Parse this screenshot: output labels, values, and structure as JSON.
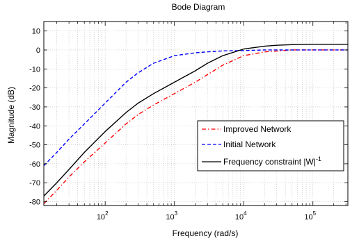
{
  "chart_data": {
    "type": "line",
    "title": "Bode Diagram",
    "xlabel": "Frequency  (rad/s)",
    "ylabel": "Magnitude (dB)",
    "xscale": "log",
    "xlim": [
      13,
      320000
    ],
    "ylim": [
      -82,
      15
    ],
    "yticks": [
      10,
      0,
      -10,
      -20,
      -30,
      -40,
      -50,
      -60,
      -70,
      -80
    ],
    "xticks": [
      {
        "value": 100,
        "base": "10",
        "exp": "2"
      },
      {
        "value": 1000,
        "base": "10",
        "exp": "3"
      },
      {
        "value": 10000,
        "base": "10",
        "exp": "4"
      },
      {
        "value": 100000,
        "base": "10",
        "exp": "5"
      }
    ],
    "grid": true,
    "legend_position": "inside-lower-right",
    "series": [
      {
        "name": "Improved Network",
        "color": "#ff0000",
        "style": "dashdot",
        "x": [
          13,
          20,
          30,
          50,
          100,
          200,
          300,
          500,
          1000,
          2000,
          3000,
          5000,
          10000,
          20000,
          50000,
          100000,
          320000
        ],
        "y": [
          -81,
          -74,
          -67,
          -59,
          -49,
          -39,
          -34,
          -29,
          -23,
          -17,
          -13,
          -8,
          -3,
          -1,
          0,
          0,
          0
        ]
      },
      {
        "name": "Initial Network",
        "color": "#0000ff",
        "style": "dashed",
        "x": [
          13,
          20,
          30,
          50,
          100,
          200,
          300,
          500,
          1000,
          2000,
          3000,
          5000,
          10000,
          20000,
          50000,
          100000,
          320000
        ],
        "y": [
          -61,
          -54,
          -47,
          -39,
          -28,
          -17,
          -12,
          -7,
          -3,
          -1.5,
          -1,
          -0.5,
          -0.3,
          0,
          0,
          0,
          0
        ]
      },
      {
        "name": "Frequency constraint |W|",
        "name_sup": "-1",
        "color": "#000000",
        "style": "solid",
        "x": [
          13,
          20,
          30,
          50,
          100,
          200,
          300,
          500,
          1000,
          2000,
          3000,
          5000,
          10000,
          20000,
          30000,
          50000,
          100000,
          320000
        ],
        "y": [
          -77,
          -70,
          -63,
          -54,
          -43,
          -33,
          -28,
          -23,
          -17,
          -11,
          -7,
          -3,
          0.5,
          2,
          2.5,
          2.8,
          3,
          3
        ]
      }
    ]
  }
}
